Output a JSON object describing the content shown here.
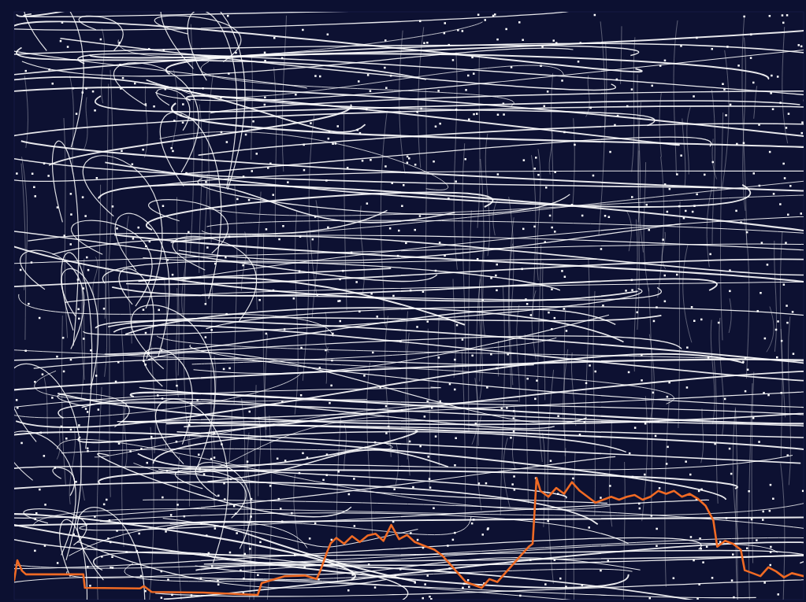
{
  "chart_data": {
    "type": "line",
    "x": [
      0,
      4,
      10,
      15,
      88,
      90,
      160,
      165,
      175,
      240,
      310,
      315,
      325,
      345,
      370,
      385,
      390,
      398,
      403,
      410,
      420,
      430,
      440,
      450,
      460,
      470,
      480,
      490,
      500,
      510,
      525,
      535,
      545,
      555,
      565,
      575,
      585,
      595,
      605,
      615,
      625,
      635,
      645,
      655,
      660,
      665,
      670,
      680,
      690,
      700,
      710,
      720,
      730,
      740,
      750,
      760,
      770,
      780,
      790,
      800,
      810,
      820,
      830,
      840,
      850,
      860,
      870,
      880,
      890,
      895,
      905,
      915,
      925,
      930,
      940,
      950,
      960,
      970,
      980,
      990,
      1005
    ],
    "values": [
      3.3,
      6.7,
      4.9,
      4.3,
      4.3,
      2.0,
      1.9,
      2.3,
      1.3,
      1.2,
      0.8,
      2.8,
      3.2,
      4.0,
      4.1,
      3.5,
      5.0,
      8.0,
      9.6,
      10.5,
      9.5,
      10.8,
      9.8,
      10.9,
      11.2,
      10.0,
      12.7,
      10.3,
      11.0,
      9.8,
      9.0,
      8.5,
      7.5,
      6.0,
      4.5,
      3.0,
      2.5,
      2.0,
      3.5,
      3.0,
      4.5,
      6.0,
      7.5,
      9.0,
      9.5,
      20.7,
      18.5,
      17.5,
      19.0,
      18.0,
      20.0,
      18.5,
      17.5,
      16.5,
      17.0,
      17.5,
      17.0,
      17.5,
      17.8,
      17.0,
      17.5,
      18.5,
      18.0,
      18.5,
      17.5,
      18.0,
      17.2,
      16.0,
      13.5,
      9.0,
      10.0,
      9.5,
      8.5,
      5.0,
      4.5,
      4.0,
      5.5,
      4.8,
      3.8,
      4.5,
      4.0
    ],
    "color": "#f06a24",
    "xlim": [
      0,
      1005
    ],
    "ylim": [
      0,
      100
    ],
    "grid": false,
    "tick_labels": false
  }
}
